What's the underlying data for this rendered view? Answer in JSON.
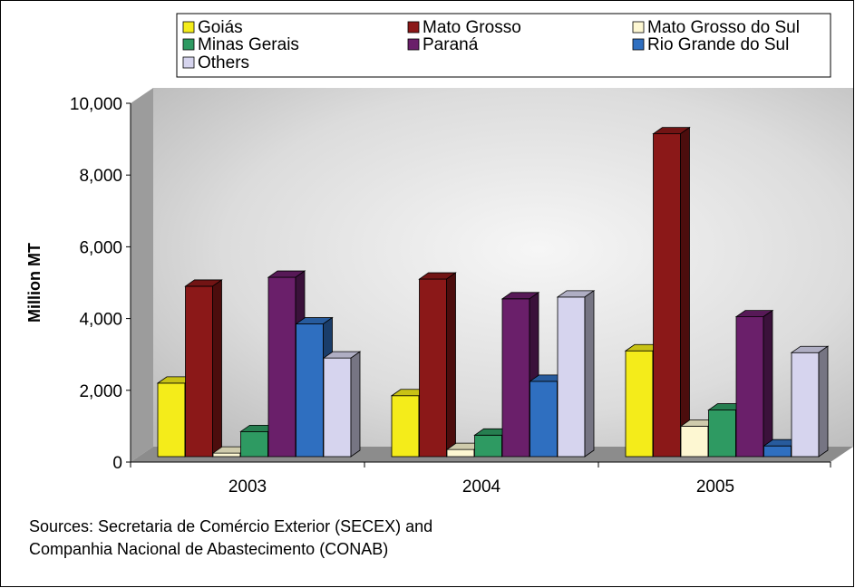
{
  "chart_data": {
    "type": "bar",
    "ylabel": "Million MT",
    "ylim": [
      0,
      10000
    ],
    "yticks": [
      "0",
      "2,000",
      "4,000",
      "6,000",
      "8,000",
      "10,000"
    ],
    "ytick_values": [
      0,
      2000,
      4000,
      6000,
      8000,
      10000
    ],
    "categories": [
      "2003",
      "2004",
      "2005"
    ],
    "legend_position": "top",
    "series": [
      {
        "name": "Goiás",
        "color": "#f4ec1a",
        "values": [
          2200,
          1850,
          3100
        ]
      },
      {
        "name": "Mato Grosso",
        "color": "#8b1818",
        "values": [
          4900,
          5100,
          9150
        ]
      },
      {
        "name": "Mato Grosso do Sul",
        "color": "#fdf7d2",
        "values": [
          250,
          350,
          1000
        ]
      },
      {
        "name": "Minas Gerais",
        "color": "#2e9a62",
        "values": [
          850,
          750,
          1450
        ]
      },
      {
        "name": "Paraná",
        "color": "#6a1f6a",
        "values": [
          5150,
          4550,
          4050
        ]
      },
      {
        "name": "Rio Grande do Sul",
        "color": "#2f6fc0",
        "values": [
          3850,
          2250,
          450
        ]
      },
      {
        "name": "Others",
        "color": "#d6d4ee",
        "values": [
          2900,
          4600,
          3050
        ]
      }
    ]
  },
  "source_note": {
    "line1": "Sources: Secretaria de Comércio Exterior (SECEX) and",
    "line2": "Companhia Nacional de Abastecimento (CONAB)"
  }
}
